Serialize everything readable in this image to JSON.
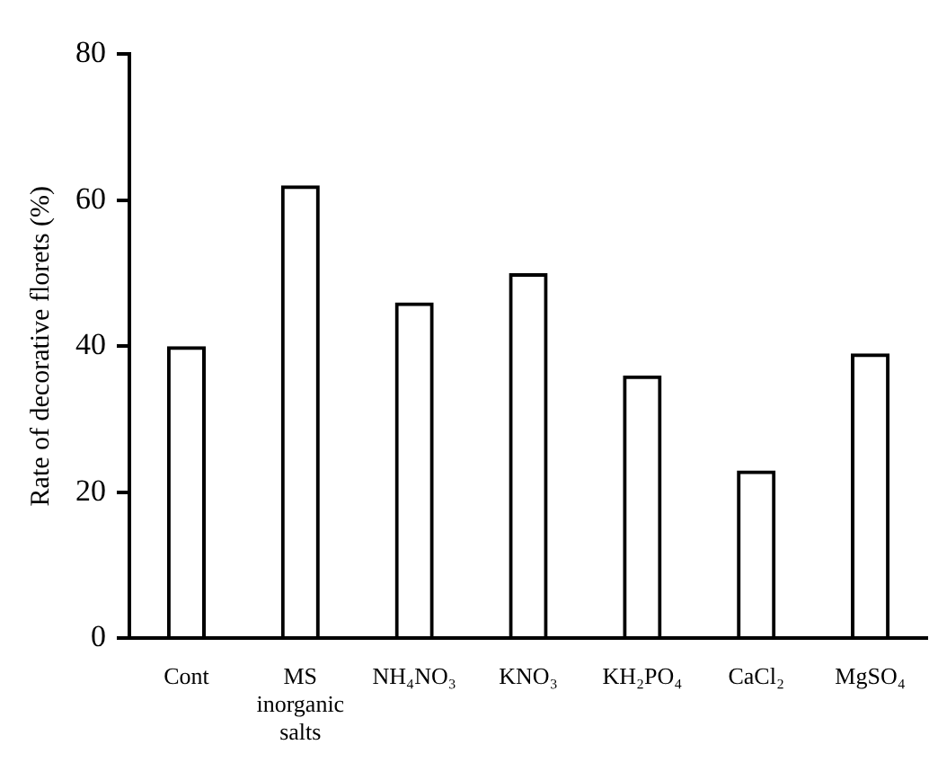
{
  "chart_data": {
    "type": "bar",
    "ylabel": "Rate of decorative florets (%)",
    "categories": [
      "Cont",
      "MS inorganic salts",
      "NH₄NO₃",
      "KNO₃",
      "KH₂PO₄",
      "CaCl₂",
      "MgSO₄"
    ],
    "values": [
      40,
      62,
      46,
      50,
      36,
      23,
      39
    ],
    "color": "#000000",
    "ylim": [
      0,
      80
    ],
    "yticks": [
      0,
      20,
      40,
      60,
      80
    ],
    "grid": false,
    "legend": false
  }
}
